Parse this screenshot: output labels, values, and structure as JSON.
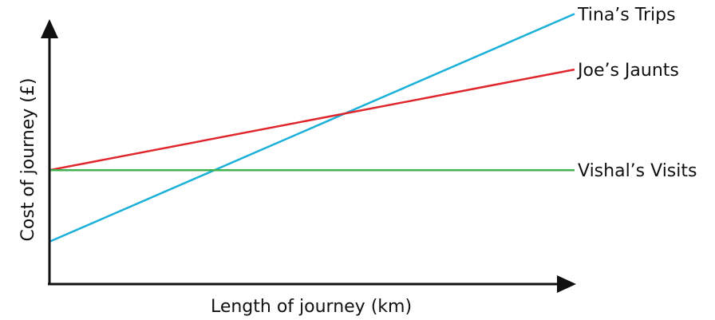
{
  "chart_data": {
    "type": "line",
    "title": "",
    "xlabel": "Length of journey (km)",
    "ylabel": "Cost of journey (£)",
    "xlim": [
      0,
      10
    ],
    "ylim": [
      0,
      10
    ],
    "grid": false,
    "legend": "inline labels at right end of each line",
    "axis_color": "#111111",
    "series": [
      {
        "name": "Tina’s Trips",
        "color": "#1ab0d8",
        "x": [
          0,
          10
        ],
        "y": [
          1.6,
          10.2
        ]
      },
      {
        "name": "Joe’s Jaunts",
        "color": "#e0262d",
        "x": [
          0,
          10
        ],
        "y": [
          4.3,
          8.1
        ]
      },
      {
        "name": "Vishal’s Visits",
        "color": "#3fb34f",
        "x": [
          0,
          10
        ],
        "y": [
          4.3,
          4.3
        ]
      }
    ]
  }
}
